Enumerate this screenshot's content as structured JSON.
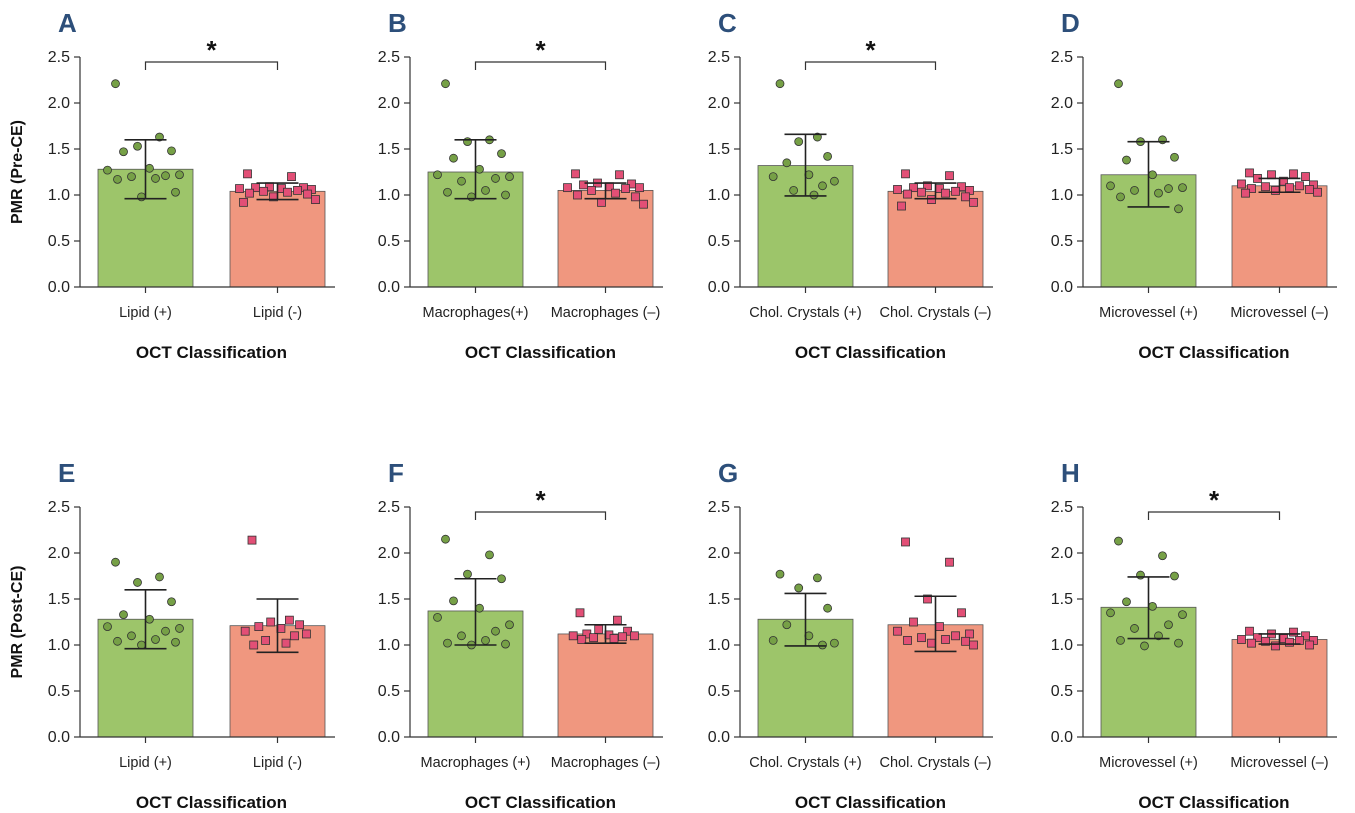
{
  "figure": {
    "x_axis_label": "OCT Classification",
    "row_labels": [
      "PMR (Pre-CE)",
      "PMR (Post-CE)"
    ],
    "y_ticks": [
      "0.0",
      "0.5",
      "1.0",
      "1.5",
      "2.0",
      "2.5"
    ],
    "colors": {
      "positive_bar": "#9dc56a",
      "negative_bar": "#f0977f",
      "positive_point": "#76a046",
      "negative_point": "#e24f76",
      "panel_letter": "#2d4f7a",
      "axis": "#333333"
    },
    "point_markers": {
      "positive": "circle",
      "negative": "square"
    },
    "significance_marker": "*"
  },
  "chart_data": [
    {
      "panel": "A",
      "type": "bar",
      "categories": [
        "Lipid (+)",
        "Lipid (-)"
      ],
      "values": [
        1.28,
        1.04
      ],
      "error": [
        [
          0.96,
          1.6
        ],
        [
          0.95,
          1.13
        ]
      ],
      "points": [
        [
          2.21,
          1.63,
          1.53,
          1.48,
          1.47,
          1.29,
          1.27,
          1.22,
          1.21,
          1.2,
          1.18,
          1.17,
          1.03,
          0.98
        ],
        [
          1.23,
          1.2,
          1.09,
          1.08,
          1.08,
          1.07,
          1.07,
          1.06,
          1.05,
          1.04,
          1.03,
          1.02,
          1.01,
          0.98,
          0.95,
          0.92
        ]
      ],
      "significant": true,
      "ylim": [
        0,
        2.5
      ],
      "xlabel": "OCT Classification",
      "ylabel": "PMR (Pre-CE)"
    },
    {
      "panel": "B",
      "type": "bar",
      "categories": [
        "Macrophages(+)",
        "Macrophages (–)"
      ],
      "values": [
        1.25,
        1.05
      ],
      "error": [
        [
          0.96,
          1.6
        ],
        [
          0.96,
          1.13
        ]
      ],
      "points": [
        [
          2.21,
          1.6,
          1.58,
          1.45,
          1.4,
          1.28,
          1.22,
          1.2,
          1.18,
          1.15,
          1.05,
          1.03,
          1.0,
          0.98
        ],
        [
          1.23,
          1.22,
          1.13,
          1.12,
          1.11,
          1.09,
          1.08,
          1.08,
          1.07,
          1.05,
          1.02,
          1.0,
          0.98,
          0.92,
          0.9
        ]
      ],
      "significant": true,
      "ylim": [
        0,
        2.5
      ],
      "xlabel": "OCT Classification",
      "ylabel": ""
    },
    {
      "panel": "C",
      "type": "bar",
      "categories": [
        "Chol. Crystals (+)",
        "Chol. Crystals (–)"
      ],
      "values": [
        1.32,
        1.04
      ],
      "error": [
        [
          0.99,
          1.66
        ],
        [
          0.96,
          1.13
        ]
      ],
      "points": [
        [
          2.21,
          1.63,
          1.58,
          1.42,
          1.35,
          1.22,
          1.2,
          1.15,
          1.1,
          1.05,
          1.0
        ],
        [
          1.23,
          1.21,
          1.1,
          1.09,
          1.08,
          1.07,
          1.06,
          1.05,
          1.04,
          1.03,
          1.02,
          1.01,
          0.98,
          0.95,
          0.92,
          0.88
        ]
      ],
      "significant": true,
      "ylim": [
        0,
        2.5
      ],
      "xlabel": "OCT Classification",
      "ylabel": ""
    },
    {
      "panel": "D",
      "type": "bar",
      "categories": [
        "Microvessel (+)",
        "Microvessel (–)"
      ],
      "values": [
        1.22,
        1.1
      ],
      "error": [
        [
          0.87,
          1.58
        ],
        [
          1.03,
          1.18
        ]
      ],
      "points": [
        [
          2.21,
          1.6,
          1.58,
          1.41,
          1.38,
          1.22,
          1.1,
          1.08,
          1.07,
          1.05,
          1.02,
          0.98,
          0.85
        ],
        [
          1.24,
          1.23,
          1.22,
          1.2,
          1.18,
          1.15,
          1.12,
          1.11,
          1.1,
          1.09,
          1.08,
          1.07,
          1.06,
          1.05,
          1.03,
          1.02
        ]
      ],
      "significant": false,
      "ylim": [
        0,
        2.5
      ],
      "xlabel": "OCT Classification",
      "ylabel": ""
    },
    {
      "panel": "E",
      "type": "bar",
      "categories": [
        "Lipid (+)",
        "Lipid (-)"
      ],
      "values": [
        1.28,
        1.21
      ],
      "error": [
        [
          0.96,
          1.6
        ],
        [
          0.92,
          1.5
        ]
      ],
      "points": [
        [
          1.9,
          1.74,
          1.68,
          1.47,
          1.33,
          1.28,
          1.2,
          1.18,
          1.15,
          1.1,
          1.06,
          1.04,
          1.03,
          1.0
        ],
        [
          2.14,
          1.27,
          1.25,
          1.22,
          1.2,
          1.18,
          1.15,
          1.12,
          1.1,
          1.05,
          1.02,
          1.0
        ]
      ],
      "significant": false,
      "ylim": [
        0,
        2.5
      ],
      "xlabel": "OCT Classification",
      "ylabel": "PMR (Post-CE)"
    },
    {
      "panel": "F",
      "type": "bar",
      "categories": [
        "Macrophages (+)",
        "Macrophages (–)"
      ],
      "values": [
        1.37,
        1.12
      ],
      "error": [
        [
          1.0,
          1.72
        ],
        [
          1.02,
          1.22
        ]
      ],
      "points": [
        [
          2.15,
          1.98,
          1.77,
          1.72,
          1.48,
          1.4,
          1.3,
          1.22,
          1.15,
          1.1,
          1.05,
          1.02,
          1.01,
          1.0
        ],
        [
          1.35,
          1.27,
          1.17,
          1.15,
          1.12,
          1.11,
          1.1,
          1.1,
          1.09,
          1.08,
          1.07,
          1.06
        ]
      ],
      "significant": true,
      "ylim": [
        0,
        2.5
      ],
      "xlabel": "OCT Classification",
      "ylabel": ""
    },
    {
      "panel": "G",
      "type": "bar",
      "categories": [
        "Chol. Crystals (+)",
        "Chol. Crystals (–)"
      ],
      "values": [
        1.28,
        1.22
      ],
      "error": [
        [
          0.99,
          1.56
        ],
        [
          0.93,
          1.53
        ]
      ],
      "points": [
        [
          1.77,
          1.73,
          1.62,
          1.4,
          1.22,
          1.1,
          1.05,
          1.02,
          1.0
        ],
        [
          2.12,
          1.9,
          1.5,
          1.35,
          1.25,
          1.2,
          1.15,
          1.12,
          1.1,
          1.08,
          1.06,
          1.05,
          1.04,
          1.02,
          1.0
        ]
      ],
      "significant": false,
      "ylim": [
        0,
        2.5
      ],
      "xlabel": "OCT Classification",
      "ylabel": ""
    },
    {
      "panel": "H",
      "type": "bar",
      "categories": [
        "Microvessel (+)",
        "Microvessel (–)"
      ],
      "values": [
        1.41,
        1.06
      ],
      "error": [
        [
          1.07,
          1.74
        ],
        [
          1.01,
          1.12
        ]
      ],
      "points": [
        [
          2.13,
          1.97,
          1.76,
          1.75,
          1.47,
          1.42,
          1.35,
          1.33,
          1.22,
          1.18,
          1.1,
          1.05,
          1.02,
          0.99
        ],
        [
          1.15,
          1.14,
          1.12,
          1.1,
          1.08,
          1.07,
          1.06,
          1.05,
          1.05,
          1.04,
          1.03,
          1.02,
          1.0,
          0.99
        ]
      ],
      "significant": true,
      "ylim": [
        0,
        2.5
      ],
      "xlabel": "OCT Classification",
      "ylabel": ""
    }
  ]
}
